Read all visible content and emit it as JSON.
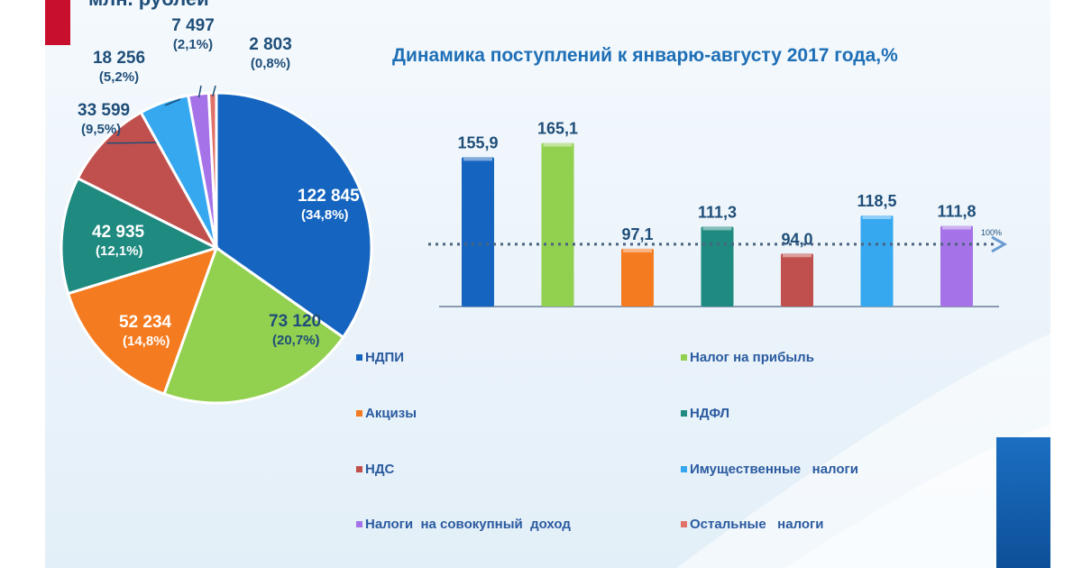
{
  "unit_label": "млн. рублей",
  "chart_data": [
    {
      "type": "pie",
      "slices": [
        {
          "name": "НДПИ",
          "value": 122845,
          "value_label": "122 845",
          "share_label": "(34,8%)",
          "color": "#1565c0"
        },
        {
          "name": "Налог на прибыль",
          "value": 73120,
          "value_label": "73 120",
          "share_label": "(20,7%)",
          "color": "#92d050"
        },
        {
          "name": "Акцизы",
          "value": 52234,
          "value_label": "52 234",
          "share_label": "(14,8%)",
          "color": "#f47b20"
        },
        {
          "name": "НДФЛ",
          "value": 42935,
          "value_label": "42 935",
          "share_label": "(12,1%)",
          "color": "#1f8a80"
        },
        {
          "name": "НДС",
          "value": 33599,
          "value_label": "33 599",
          "share_label": "(9,5%)",
          "color": "#c0504d"
        },
        {
          "name": "Имущественные налоги",
          "value": 18256,
          "value_label": "18 256",
          "share_label": "(5,2%)",
          "color": "#35a8f0"
        },
        {
          "name": "Налоги на совокупный доход",
          "value": 7497,
          "value_label": "7 497",
          "share_label": "(2,1%)",
          "color": "#a572e8"
        },
        {
          "name": "Остальные налоги",
          "value": 2803,
          "value_label": "2 803",
          "share_label": "(0,8%)",
          "color": "#e0726a"
        }
      ]
    },
    {
      "type": "bar",
      "title": "Динамика поступлений к январю-августу 2017 года,%",
      "categories": [
        "НДПИ",
        "Налог на прибыль",
        "Акцизы",
        "НДФЛ",
        "НДС",
        "Имущественные налоги",
        "Налоги на совокупный доход"
      ],
      "values": [
        155.9,
        165.1,
        97.1,
        111.3,
        94.0,
        118.5,
        111.8
      ],
      "value_labels": [
        "155,9",
        "165,1",
        "97,1",
        "111,3",
        "94,0",
        "118,5",
        "111,8"
      ],
      "colors": [
        "#1565c0",
        "#92d050",
        "#f47b20",
        "#1f8a80",
        "#c0504d",
        "#35a8f0",
        "#a572e8"
      ],
      "reference_line": {
        "value": 100,
        "label": "100%"
      },
      "ylim": [
        60,
        170
      ]
    }
  ],
  "legend": [
    {
      "label": "НДПИ",
      "color": "#1565c0"
    },
    {
      "label": "Налог на прибыль",
      "color": "#92d050"
    },
    {
      "label": "Акцизы",
      "color": "#f47b20"
    },
    {
      "label": "НДФЛ",
      "color": "#1f8a80"
    },
    {
      "label": "НДС",
      "color": "#c0504d"
    },
    {
      "label": "Имущественные   налоги",
      "color": "#35a8f0"
    },
    {
      "label": "Налоги  на совокупный  доход",
      "color": "#a572e8"
    },
    {
      "label": "Остальные   налоги",
      "color": "#e0726a"
    }
  ]
}
